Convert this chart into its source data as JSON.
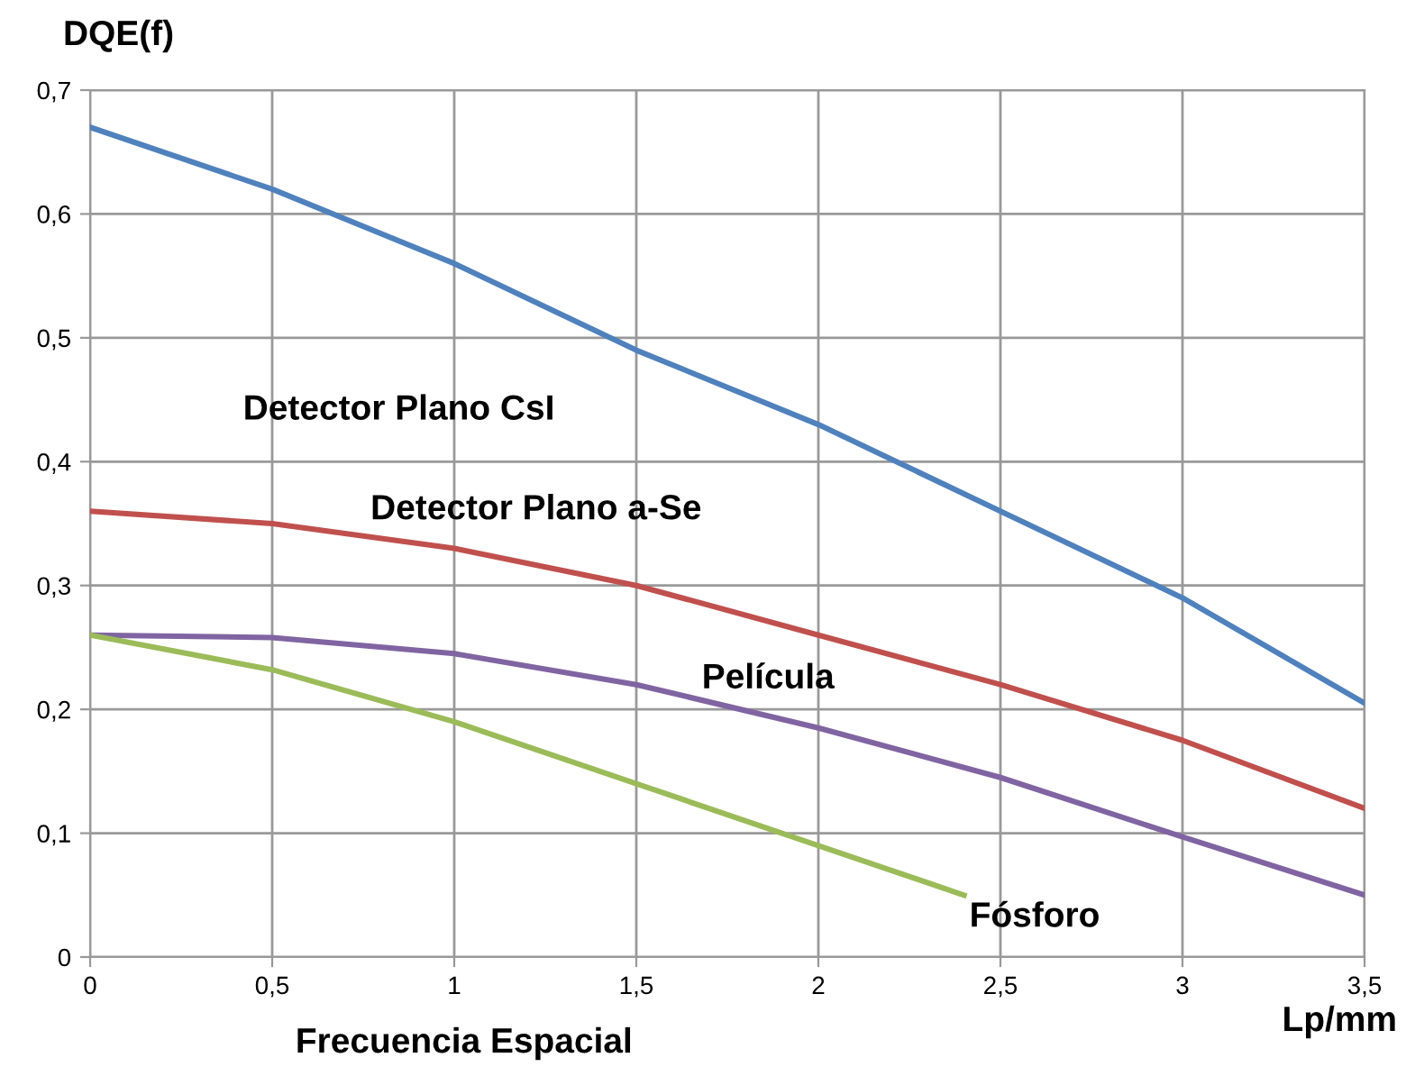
{
  "chart_data": {
    "type": "line",
    "ylabel": "DQE(f)",
    "xlabel": "Frecuencia Espacial",
    "annotations": [
      "Lp/mm"
    ],
    "xlim": [
      0,
      3.5
    ],
    "ylim": [
      0,
      0.7
    ],
    "xticks": [
      0,
      {
        "value": 0.5,
        "label": "0,5"
      },
      1,
      {
        "value": 1.5,
        "label": "1,5"
      },
      2,
      {
        "value": 2.5,
        "label": "2,5"
      },
      3,
      {
        "value": 3.5,
        "label": "3,5"
      }
    ],
    "yticks": [
      0,
      {
        "value": 0.1,
        "label": "0,1"
      },
      {
        "value": 0.2,
        "label": "0,2"
      },
      {
        "value": 0.3,
        "label": "0,3"
      },
      {
        "value": 0.4,
        "label": "0,4"
      },
      {
        "value": 0.5,
        "label": "0,5"
      },
      {
        "value": 0.6,
        "label": "0,6"
      },
      {
        "value": 0.7,
        "label": "0,7"
      }
    ],
    "grid": true,
    "legend": false,
    "marker": "none",
    "line_style": "solid",
    "series": [
      {
        "name": "Detector Plano CsI",
        "color": "#4f81bd",
        "x": [
          0,
          0.5,
          1,
          1.5,
          2,
          2.5,
          3,
          3.5
        ],
        "values": [
          0.67,
          0.62,
          0.56,
          0.49,
          0.43,
          0.36,
          0.29,
          0.205
        ]
      },
      {
        "name": "Detector Plano a-Se",
        "color": "#c0504d",
        "x": [
          0,
          0.5,
          1,
          1.5,
          2,
          2.5,
          3,
          3.5
        ],
        "values": [
          0.36,
          0.35,
          0.33,
          0.3,
          0.26,
          0.22,
          0.175,
          0.12
        ]
      },
      {
        "name": "Película",
        "color": "#8064a2",
        "x": [
          0,
          0.5,
          1,
          1.5,
          2,
          2.5,
          3,
          3.5
        ],
        "values": [
          0.26,
          0.258,
          0.245,
          0.22,
          0.185,
          0.145,
          0.097,
          0.05
        ]
      },
      {
        "name": "Fósforo",
        "color": "#9bbb59",
        "x": [
          0,
          0.5,
          1,
          1.5,
          2,
          2.4
        ],
        "values": [
          0.26,
          0.232,
          0.19,
          0.14,
          0.09,
          0.05
        ]
      }
    ]
  }
}
